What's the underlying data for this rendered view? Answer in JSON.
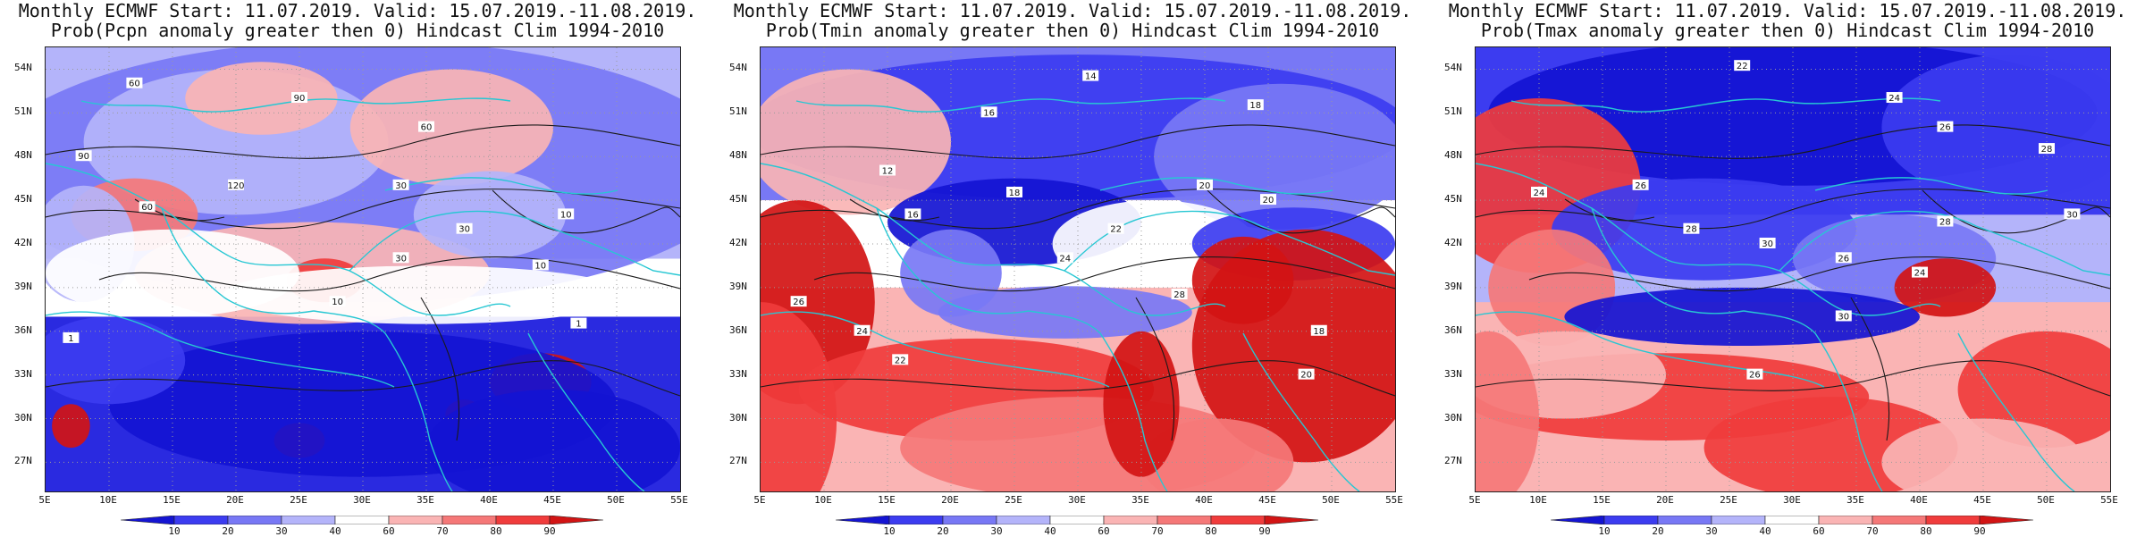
{
  "panels": [
    {
      "title1": "Monthly ECMWF Start: 11.07.2019. Valid: 15.07.2019.-11.08.2019.",
      "title2": "Prob(Pcpn anomaly greater then 0) Hindcast Clim 1994-2010",
      "contour_labels": [
        "60",
        "90",
        "60",
        "90",
        "120",
        "60",
        "30",
        "10",
        "30",
        "10",
        "10",
        "30",
        "1",
        "1"
      ]
    },
    {
      "title1": "Monthly ECMWF Start: 11.07.2019. Valid: 15.07.2019.-11.08.2019.",
      "title2": "Prob(Tmin anomaly greater then 0) Hindcast Clim 1994-2010",
      "contour_labels": [
        "14",
        "16",
        "18",
        "12",
        "18",
        "16",
        "20",
        "22",
        "24",
        "20",
        "26",
        "24",
        "22",
        "28",
        "18",
        "20"
      ]
    },
    {
      "title1": "Monthly ECMWF Start: 11.07.2019. Valid: 15.07.2019.-11.08.2019.",
      "title2": "Prob(Tmax anomaly greater then 0) Hindcast Clim 1994-2010",
      "contour_labels": [
        "22",
        "24",
        "26",
        "28",
        "30",
        "24",
        "26",
        "28",
        "30",
        "26",
        "28",
        "24",
        "30",
        "26"
      ]
    }
  ],
  "lat_labels": [
    "54N",
    "51N",
    "48N",
    "45N",
    "42N",
    "39N",
    "36N",
    "33N",
    "30N",
    "27N"
  ],
  "lon_labels": [
    "5E",
    "10E",
    "15E",
    "20E",
    "25E",
    "30E",
    "35E",
    "40E",
    "45E",
    "50E",
    "55E"
  ],
  "colorbar": {
    "labels": [
      "10",
      "20",
      "30",
      "40",
      "60",
      "70",
      "80",
      "90"
    ],
    "colors": [
      "#1414d2",
      "#3c3cf0",
      "#7878f5",
      "#b4b4fa",
      "#ffffff",
      "#fab4b4",
      "#f57878",
      "#f03c3c",
      "#d21414"
    ]
  }
}
